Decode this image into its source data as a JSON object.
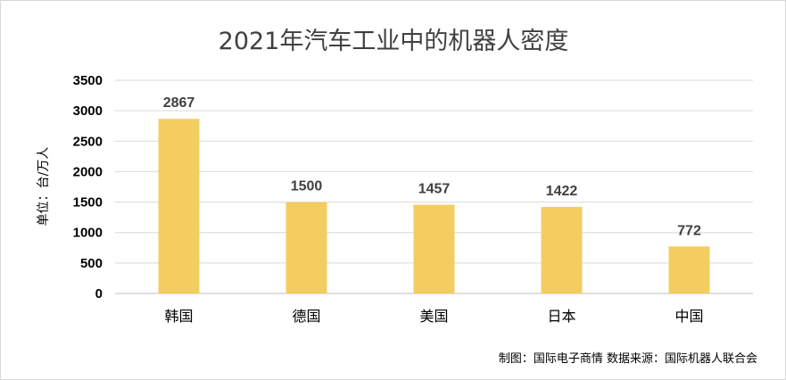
{
  "chart_data": {
    "type": "bar",
    "title": "2021年汽车工业中的机器人密度",
    "ylabel": "单位：台/万人",
    "xlabel": "",
    "categories": [
      "韩国",
      "德国",
      "美国",
      "日本",
      "中国"
    ],
    "values": [
      2867,
      1500,
      1457,
      1422,
      772
    ],
    "ylim": [
      0,
      3500
    ],
    "yticks": [
      0,
      500,
      1000,
      1500,
      2000,
      2500,
      3000,
      3500
    ],
    "grid": true,
    "bar_color": "#f4cd60",
    "data_labels": true
  },
  "footer": {
    "credit": "制图：国际电子商情  数据来源：国际机器人联合会"
  }
}
